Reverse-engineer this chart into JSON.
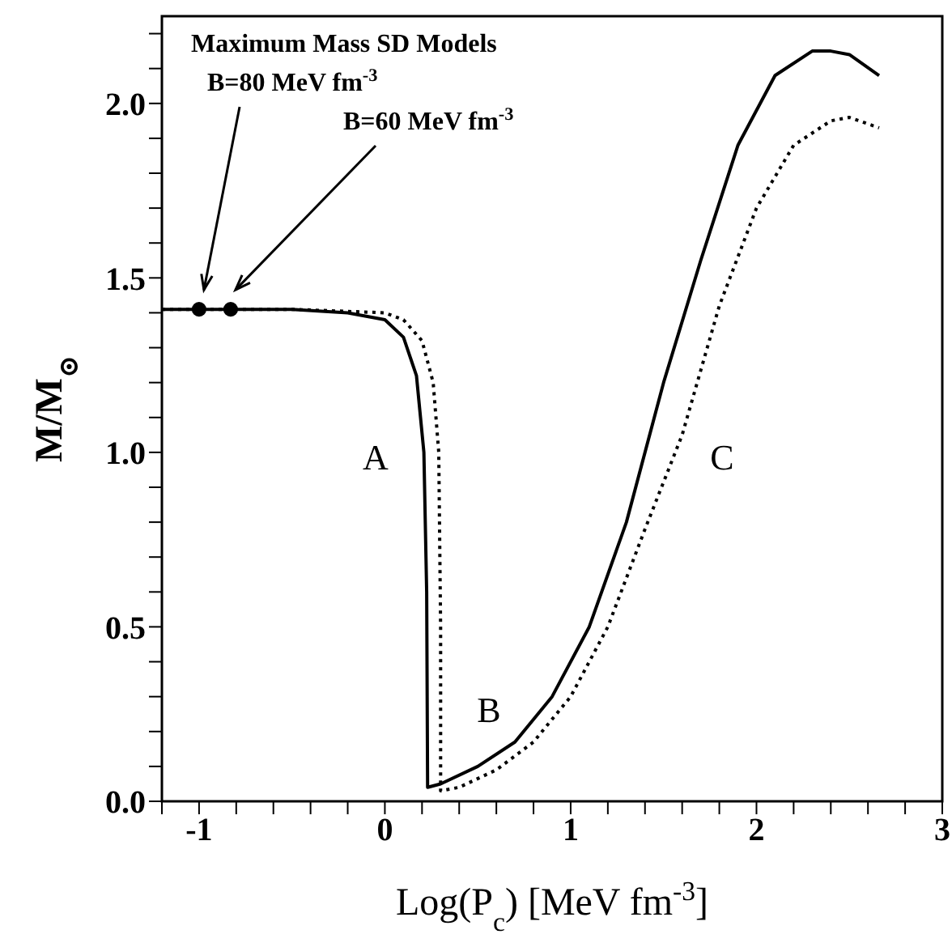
{
  "chart_data": {
    "type": "line",
    "xlabel": "Log(P$_{c}$) [MeV fm$^{-3}$]",
    "ylabel": "M/M$_{⊙}$",
    "xlim": [
      -1.2,
      3
    ],
    "ylim": [
      0,
      2.25
    ],
    "xticks": [
      {
        "value": -1.2,
        "label": null
      },
      -1,
      {
        "value": -0.8,
        "label": null
      },
      {
        "value": -0.6,
        "label": null
      },
      {
        "value": -0.4,
        "label": null
      },
      {
        "value": -0.2,
        "label": null
      },
      0,
      {
        "value": 0.2,
        "label": null
      },
      {
        "value": 0.4,
        "label": null
      },
      {
        "value": 0.6,
        "label": null
      },
      {
        "value": 0.8,
        "label": null
      },
      1,
      {
        "value": 1.2,
        "label": null
      },
      {
        "value": 1.4,
        "label": null
      },
      {
        "value": 1.6,
        "label": null
      },
      {
        "value": 1.8,
        "label": null
      },
      2,
      {
        "value": 2.2,
        "label": null
      },
      {
        "value": 2.4,
        "label": null
      },
      {
        "value": 2.6,
        "label": null
      },
      {
        "value": 2.8,
        "label": null
      },
      3
    ],
    "yticks": [
      {
        "value": 0,
        "label": "0.0"
      },
      {
        "value": 0.1,
        "label": null
      },
      {
        "value": 0.2,
        "label": null
      },
      {
        "value": 0.3,
        "label": null
      },
      {
        "value": 0.4,
        "label": null
      },
      0.5,
      {
        "value": 0.6,
        "label": null
      },
      {
        "value": 0.7,
        "label": null
      },
      {
        "value": 0.8,
        "label": null
      },
      {
        "value": 0.9,
        "label": null
      },
      {
        "value": 1,
        "label": "1.0"
      },
      {
        "value": 1.1,
        "label": null
      },
      {
        "value": 1.2,
        "label": null
      },
      {
        "value": 1.3,
        "label": null
      },
      {
        "value": 1.4,
        "label": null
      },
      1.5,
      {
        "value": 1.6,
        "label": null
      },
      {
        "value": 1.7,
        "label": null
      },
      {
        "value": 1.8,
        "label": null
      },
      {
        "value": 1.9,
        "label": null
      },
      {
        "value": 2,
        "label": "2.0"
      },
      {
        "value": 2.1,
        "label": null
      },
      {
        "value": 2.2,
        "label": null
      }
    ],
    "series": [
      {
        "color": "#000000",
        "line_style": "solid",
        "x": [
          -1.2,
          -0.5,
          -0.2,
          0,
          0.1,
          0.17,
          0.21,
          0.225,
          0.23,
          0.3,
          0.5,
          0.7,
          0.9,
          1.1,
          1.3,
          1.5,
          1.7,
          1.9,
          2.1,
          2.3,
          2.4,
          2.5,
          2.66
        ],
        "values": [
          1.41,
          1.41,
          1.4,
          1.38,
          1.33,
          1.22,
          1.0,
          0.6,
          0.04,
          0.05,
          0.1,
          0.17,
          0.3,
          0.5,
          0.8,
          1.2,
          1.55,
          1.88,
          2.08,
          2.15,
          2.15,
          2.14,
          2.08
        ]
      },
      {
        "color": "#000000",
        "line_style": "dotted",
        "x": [
          -1.2,
          -0.5,
          0,
          0.1,
          0.2,
          0.26,
          0.29,
          0.3,
          0.3,
          0.4,
          0.6,
          0.8,
          1.0,
          1.2,
          1.4,
          1.6,
          1.8,
          2.0,
          2.2,
          2.4,
          2.5,
          2.66
        ],
        "values": [
          1.41,
          1.41,
          1.4,
          1.38,
          1.32,
          1.2,
          1.0,
          0.5,
          0.03,
          0.04,
          0.09,
          0.17,
          0.3,
          0.5,
          0.78,
          1.05,
          1.42,
          1.7,
          1.88,
          1.95,
          1.96,
          1.93
        ]
      },
      {
        "type": "scatter",
        "color": "#000000",
        "marker": "circle",
        "x": [
          -1.0,
          -0.83
        ],
        "values": [
          1.41,
          1.41
        ]
      }
    ],
    "annotations": [
      "Maximum Mass SD Models",
      "B=80 MeV fm$^{-3}$",
      "B=60 MeV fm$^{-3}$",
      "A",
      "B",
      "C"
    ]
  }
}
